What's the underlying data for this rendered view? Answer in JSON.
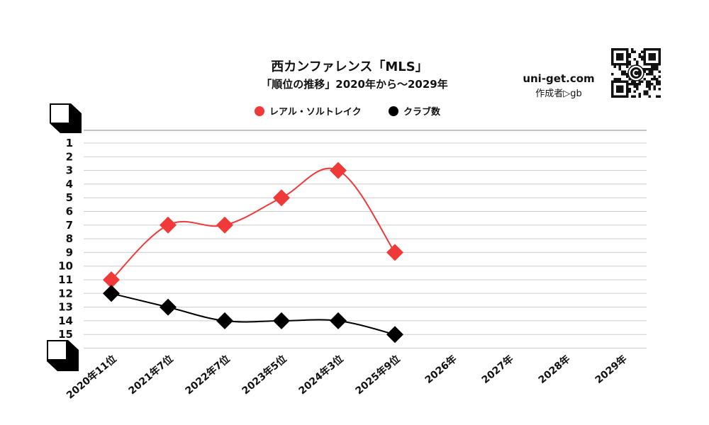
{
  "chart_data": {
    "type": "line",
    "title": "西カンファレンス「MLS」",
    "subtitle": "「順位の推移」2020年から～2029年",
    "categories": [
      "2020年11位",
      "2021年7位",
      "2022年7位",
      "2023年5位",
      "2024年3位",
      "2025年9位",
      "2026年",
      "2027年",
      "2028年",
      "2029年"
    ],
    "y_ticks": [
      "1",
      "2",
      "3",
      "4",
      "5",
      "6",
      "7",
      "8",
      "9",
      "10",
      "11",
      "12",
      "13",
      "14",
      "15"
    ],
    "ylim": [
      1,
      15
    ],
    "y_inverted": true,
    "grid": true,
    "legend_position": "top-center",
    "series": [
      {
        "name": "レアル・ソルトレイク",
        "color": "#f03a3a",
        "values": [
          11,
          7,
          7,
          5,
          3,
          9,
          null,
          null,
          null,
          null
        ]
      },
      {
        "name": "クラブ数",
        "color": "#000000",
        "values": [
          12,
          13,
          14,
          14,
          14,
          15,
          null,
          null,
          null,
          null
        ]
      }
    ]
  },
  "branding": {
    "site": "uni-get.com",
    "author": "作成者▷gb",
    "qr_icon": "qr-code-icon"
  }
}
